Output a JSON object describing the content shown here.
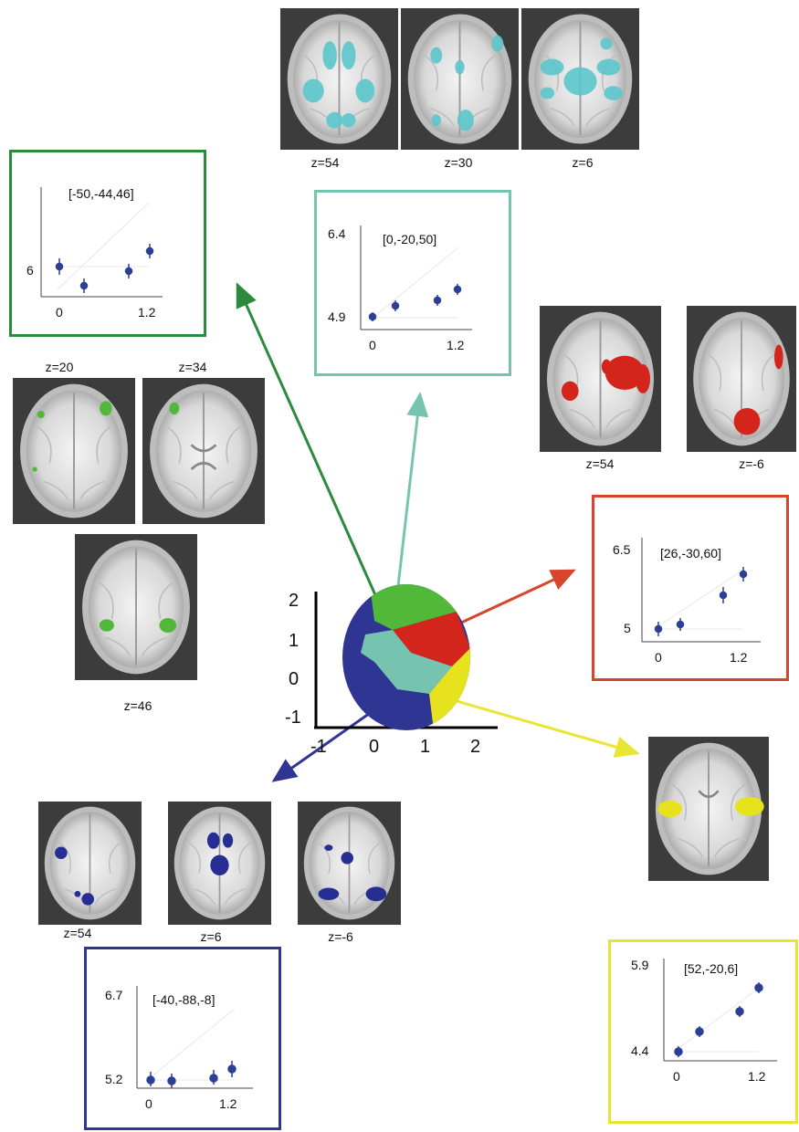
{
  "colors": {
    "green": "#2c8a3c",
    "teal": "#76c4b0",
    "red": "#d6452c",
    "yellow": "#e8e635",
    "blue": "#2e3592",
    "dot": "#2d3f94",
    "cyan_blob": "#5cc7cc",
    "green_blob": "#52b83a",
    "red_blob": "#d4251c",
    "yellow_blob": "#e7e21e",
    "blue_blob": "#262e93"
  },
  "slices": {
    "top_cyan": [
      {
        "label": "z=54"
      },
      {
        "label": "z=30"
      },
      {
        "label": "z=6"
      }
    ],
    "green": [
      {
        "label": "z=20"
      },
      {
        "label": "z=34"
      },
      {
        "label": "z=46"
      }
    ],
    "red": [
      {
        "label": "z=54"
      },
      {
        "label": "z=-6"
      }
    ],
    "blue": [
      {
        "label": "z=54"
      },
      {
        "label": "z=6"
      },
      {
        "label": "z=-6"
      }
    ]
  },
  "panels": {
    "green": {
      "coord": "[-50,-44,46]",
      "y_label": "6",
      "x0": "0",
      "x1": "1.2"
    },
    "teal": {
      "coord": "[0,-20,50]",
      "y_top": "6.4",
      "y_bottom": "4.9",
      "x0": "0",
      "x1": "1.2"
    },
    "red": {
      "coord": "[26,-30,60]",
      "y_top": "6.5",
      "y_bottom": "5",
      "x0": "0",
      "x1": "1.2"
    },
    "yellow": {
      "coord": "[52,-20,6]",
      "y_top": "5.9",
      "y_bottom": "4.4",
      "x0": "0",
      "x1": "1.2"
    },
    "blue": {
      "coord": "[-40,-88,-8]",
      "y_top": "6.7",
      "y_bottom": "5.2",
      "x0": "0",
      "x1": "1.2"
    }
  },
  "scatter": {
    "y_ticks": [
      "2",
      "1",
      "0",
      "-1"
    ],
    "x_ticks": [
      "-1",
      "0",
      "1",
      "2"
    ]
  }
}
